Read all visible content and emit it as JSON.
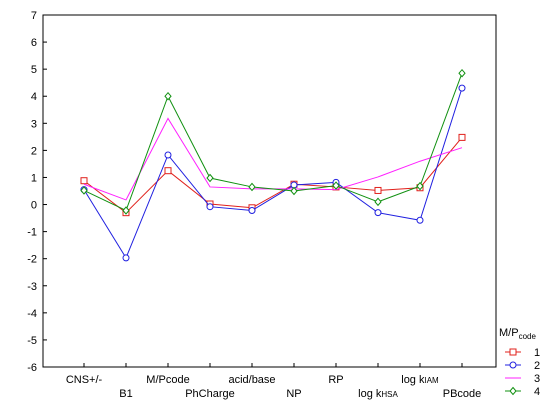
{
  "chart_data": {
    "type": "line",
    "title": "",
    "xlabel": "",
    "ylabel": "",
    "ylim": [
      -6,
      7
    ],
    "yticks": [
      -6,
      -5,
      -4,
      -3,
      -2,
      -1,
      0,
      1,
      2,
      3,
      4,
      5,
      6,
      7
    ],
    "grid": false,
    "legend_position": "bottom-right",
    "legend_title": {
      "main": "M/P",
      "sub": "code"
    },
    "categories": [
      {
        "label": "CNS+/-",
        "main": "CNS+/-",
        "sub": "",
        "row": 0
      },
      {
        "label": "B1",
        "main": "B1",
        "sub": "",
        "row": 1
      },
      {
        "label": "M/Pcode",
        "main": "M/Pcode",
        "sub": "",
        "row": 0
      },
      {
        "label": "PhCharge",
        "main": "PhCharge",
        "sub": "",
        "row": 1
      },
      {
        "label": "acid/base",
        "main": "acid/base",
        "sub": "",
        "row": 0
      },
      {
        "label": "NP",
        "main": "NP",
        "sub": "",
        "row": 1
      },
      {
        "label": "RP",
        "main": "RP",
        "sub": "",
        "row": 0
      },
      {
        "label": "log kHSA",
        "main": "log k",
        "sub": "HSA",
        "row": 1
      },
      {
        "label": "log kIAM",
        "main": "log k",
        "sub": "IAM",
        "row": 0
      },
      {
        "label": "PBcode",
        "main": "PBcode",
        "sub": "",
        "row": 1
      }
    ],
    "series": [
      {
        "name": "1",
        "color": "#e0201b",
        "marker": "square",
        "values": [
          0.88,
          -0.3,
          1.25,
          0.02,
          -0.12,
          0.75,
          0.65,
          0.52,
          0.62,
          2.48
        ]
      },
      {
        "name": "2",
        "color": "#2020e0",
        "marker": "circle",
        "values": [
          0.55,
          -1.97,
          1.83,
          -0.08,
          -0.22,
          0.72,
          0.82,
          -0.3,
          -0.58,
          4.3
        ]
      },
      {
        "name": "3",
        "color": "#ff20ff",
        "marker": "none",
        "values": [
          0.75,
          0.17,
          3.18,
          0.65,
          0.58,
          0.58,
          0.55,
          1.02,
          1.6,
          2.1
        ]
      },
      {
        "name": "4",
        "color": "#109010",
        "marker": "diamond",
        "values": [
          0.52,
          -0.22,
          4.0,
          0.98,
          0.65,
          0.5,
          0.7,
          0.1,
          0.68,
          4.85
        ]
      }
    ]
  }
}
